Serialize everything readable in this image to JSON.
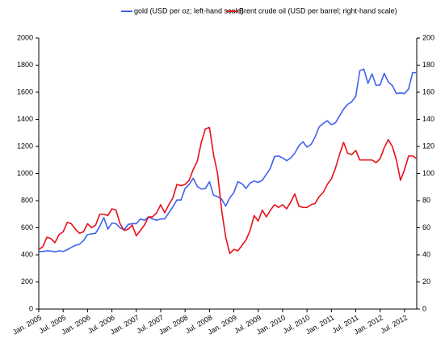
{
  "chart_data": {
    "type": "line",
    "x": [
      "2005-01",
      "2005-02",
      "2005-03",
      "2005-04",
      "2005-05",
      "2005-06",
      "2005-07",
      "2005-08",
      "2005-09",
      "2005-10",
      "2005-11",
      "2005-12",
      "2006-01",
      "2006-02",
      "2006-03",
      "2006-04",
      "2006-05",
      "2006-06",
      "2006-07",
      "2006-08",
      "2006-09",
      "2006-10",
      "2006-11",
      "2006-12",
      "2007-01",
      "2007-02",
      "2007-03",
      "2007-04",
      "2007-05",
      "2007-06",
      "2007-07",
      "2007-08",
      "2007-09",
      "2007-10",
      "2007-11",
      "2007-12",
      "2008-01",
      "2008-02",
      "2008-03",
      "2008-04",
      "2008-05",
      "2008-06",
      "2008-07",
      "2008-08",
      "2008-09",
      "2008-10",
      "2008-11",
      "2008-12",
      "2009-01",
      "2009-02",
      "2009-03",
      "2009-04",
      "2009-05",
      "2009-06",
      "2009-07",
      "2009-08",
      "2009-09",
      "2009-10",
      "2009-11",
      "2009-12",
      "2010-01",
      "2010-02",
      "2010-03",
      "2010-04",
      "2010-05",
      "2010-06",
      "2010-07",
      "2010-08",
      "2010-09",
      "2010-10",
      "2010-11",
      "2010-12",
      "2011-01",
      "2011-02",
      "2011-03",
      "2011-04",
      "2011-05",
      "2011-06",
      "2011-07",
      "2011-08",
      "2011-09",
      "2011-10",
      "2011-11",
      "2011-12",
      "2012-01",
      "2012-02",
      "2012-03",
      "2012-04",
      "2012-05",
      "2012-06",
      "2012-07",
      "2012-08",
      "2012-09",
      "2012-10"
    ],
    "series": [
      {
        "name": "gold (USD per oz; left-hand scale)",
        "color": "#3f62ee",
        "axis": "y",
        "values": [
          425,
          425,
          430,
          428,
          422,
          430,
          425,
          438,
          455,
          470,
          478,
          505,
          550,
          555,
          560,
          610,
          675,
          590,
          635,
          630,
          600,
          585,
          625,
          630,
          630,
          665,
          655,
          680,
          665,
          655,
          665,
          665,
          710,
          755,
          805,
          805,
          890,
          920,
          965,
          905,
          885,
          890,
          940,
          840,
          830,
          810,
          760,
          820,
          860,
          940,
          925,
          890,
          930,
          945,
          935,
          950,
          995,
          1040,
          1125,
          1130,
          1115,
          1095,
          1115,
          1150,
          1205,
          1235,
          1195,
          1215,
          1270,
          1345,
          1370,
          1390,
          1360,
          1375,
          1425,
          1475,
          1510,
          1530,
          1570,
          1760,
          1770,
          1665,
          1735,
          1650,
          1655,
          1740,
          1675,
          1650,
          1590,
          1595,
          1590,
          1625,
          1745,
          1745
        ]
      },
      {
        "name": "Brent crude oil (USD per barrel; right-hand scale)",
        "color": "#e8101a",
        "axis": "y2",
        "values": [
          44,
          46,
          53,
          52,
          49,
          55,
          57,
          64,
          63,
          59,
          56,
          57,
          63,
          60,
          62,
          70,
          70,
          69,
          74,
          73,
          63,
          58,
          59,
          62,
          54,
          58,
          62,
          68,
          68,
          71,
          77,
          71,
          77,
          82,
          92,
          91,
          92,
          95,
          103,
          109,
          123,
          133,
          134,
          114,
          100,
          73,
          53,
          41,
          44,
          43,
          47,
          51,
          58,
          69,
          65,
          73,
          68,
          73,
          77,
          75,
          77,
          74,
          79,
          85,
          76,
          75,
          75,
          77,
          78,
          83,
          86,
          92,
          96,
          104,
          114,
          123,
          115,
          114,
          117,
          110,
          110,
          110,
          110,
          108,
          111,
          119,
          125,
          120,
          110,
          95,
          103,
          113,
          113,
          111
        ]
      }
    ],
    "xlim": [
      "2005-01",
      "2012-10"
    ],
    "xticks": [
      {
        "value": "2005-01",
        "label": "Jan. 2005"
      },
      {
        "value": "2005-07",
        "label": "Jul. 2005"
      },
      {
        "value": "2006-01",
        "label": "Jan. 2006"
      },
      {
        "value": "2006-07",
        "label": "Jul. 2006"
      },
      {
        "value": "2007-01",
        "label": "Jan. 2007"
      },
      {
        "value": "2007-07",
        "label": "Jul. 2007"
      },
      {
        "value": "2008-01",
        "label": "Jan. 2008"
      },
      {
        "value": "2008-07",
        "label": "Jul. 2008"
      },
      {
        "value": "2009-01",
        "label": "Jan. 2009"
      },
      {
        "value": "2009-07",
        "label": "Jul. 2009"
      },
      {
        "value": "2010-01",
        "label": "Jan. 2010"
      },
      {
        "value": "2010-07",
        "label": "Jul. 2010"
      },
      {
        "value": "2011-01",
        "label": "Jan. 2011"
      },
      {
        "value": "2011-07",
        "label": "Jul. 2011"
      },
      {
        "value": "2012-01",
        "label": "Jan. 2012"
      },
      {
        "value": "2012-07",
        "label": "Jul. 2012"
      }
    ],
    "ylim": [
      0,
      2000
    ],
    "yticks": [
      0,
      200,
      400,
      600,
      800,
      1000,
      1200,
      1400,
      1600,
      1800,
      2000
    ],
    "y2lim": [
      0,
      200
    ],
    "y2ticks": [
      0,
      20,
      40,
      60,
      80,
      100,
      120,
      140,
      160,
      180,
      200
    ],
    "grid": false,
    "legend": "top"
  }
}
